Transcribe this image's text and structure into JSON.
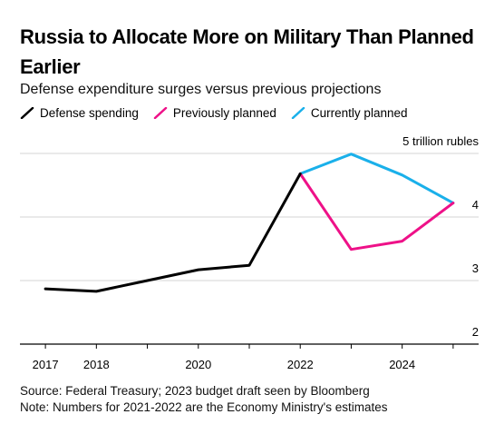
{
  "chart_data": {
    "type": "line",
    "title": "Russia to Allocate More on Military Than Planned Earlier",
    "subtitle": "Defense expenditure surges versus previous projections",
    "y_unit_label": "5 trillion rubles",
    "ylim": [
      2,
      5
    ],
    "y_ticks": [
      {
        "value": 5,
        "label": "5 trillion rubles"
      },
      {
        "value": 4,
        "label": "4"
      },
      {
        "value": 3,
        "label": "3"
      },
      {
        "value": 2,
        "label": "2"
      }
    ],
    "xlim": [
      2016.5,
      2025.5
    ],
    "x_ticks": [
      {
        "value": 2017,
        "label": "2017"
      },
      {
        "value": 2018,
        "label": "2018"
      },
      {
        "value": 2019,
        "label": ""
      },
      {
        "value": 2020,
        "label": "2020"
      },
      {
        "value": 2021,
        "label": ""
      },
      {
        "value": 2022,
        "label": "2022"
      },
      {
        "value": 2023,
        "label": ""
      },
      {
        "value": 2024,
        "label": "2024"
      },
      {
        "value": 2025,
        "label": ""
      }
    ],
    "grid": true,
    "legend_position": "top-left",
    "series": [
      {
        "name": "Defense spending",
        "color": "#000000",
        "points": [
          [
            2017,
            2.87
          ],
          [
            2018,
            2.83
          ],
          [
            2019,
            3.0
          ],
          [
            2020,
            3.17
          ],
          [
            2021,
            3.24
          ],
          [
            2022,
            4.68
          ]
        ]
      },
      {
        "name": "Previously planned",
        "color": "#ee1188",
        "points": [
          [
            2022,
            4.68
          ],
          [
            2023,
            3.49
          ],
          [
            2024,
            3.62
          ],
          [
            2025,
            4.22
          ]
        ]
      },
      {
        "name": "Currently planned",
        "color": "#1ab0ea",
        "points": [
          [
            2022,
            4.68
          ],
          [
            2023,
            4.99
          ],
          [
            2024,
            4.66
          ],
          [
            2025,
            4.22
          ]
        ]
      }
    ]
  },
  "footer": {
    "source": "Source: Federal Treasury; 2023 budget draft seen by Bloomberg",
    "note": "Note: Numbers for 2021-2022 are the Economy Ministry's estimates"
  }
}
